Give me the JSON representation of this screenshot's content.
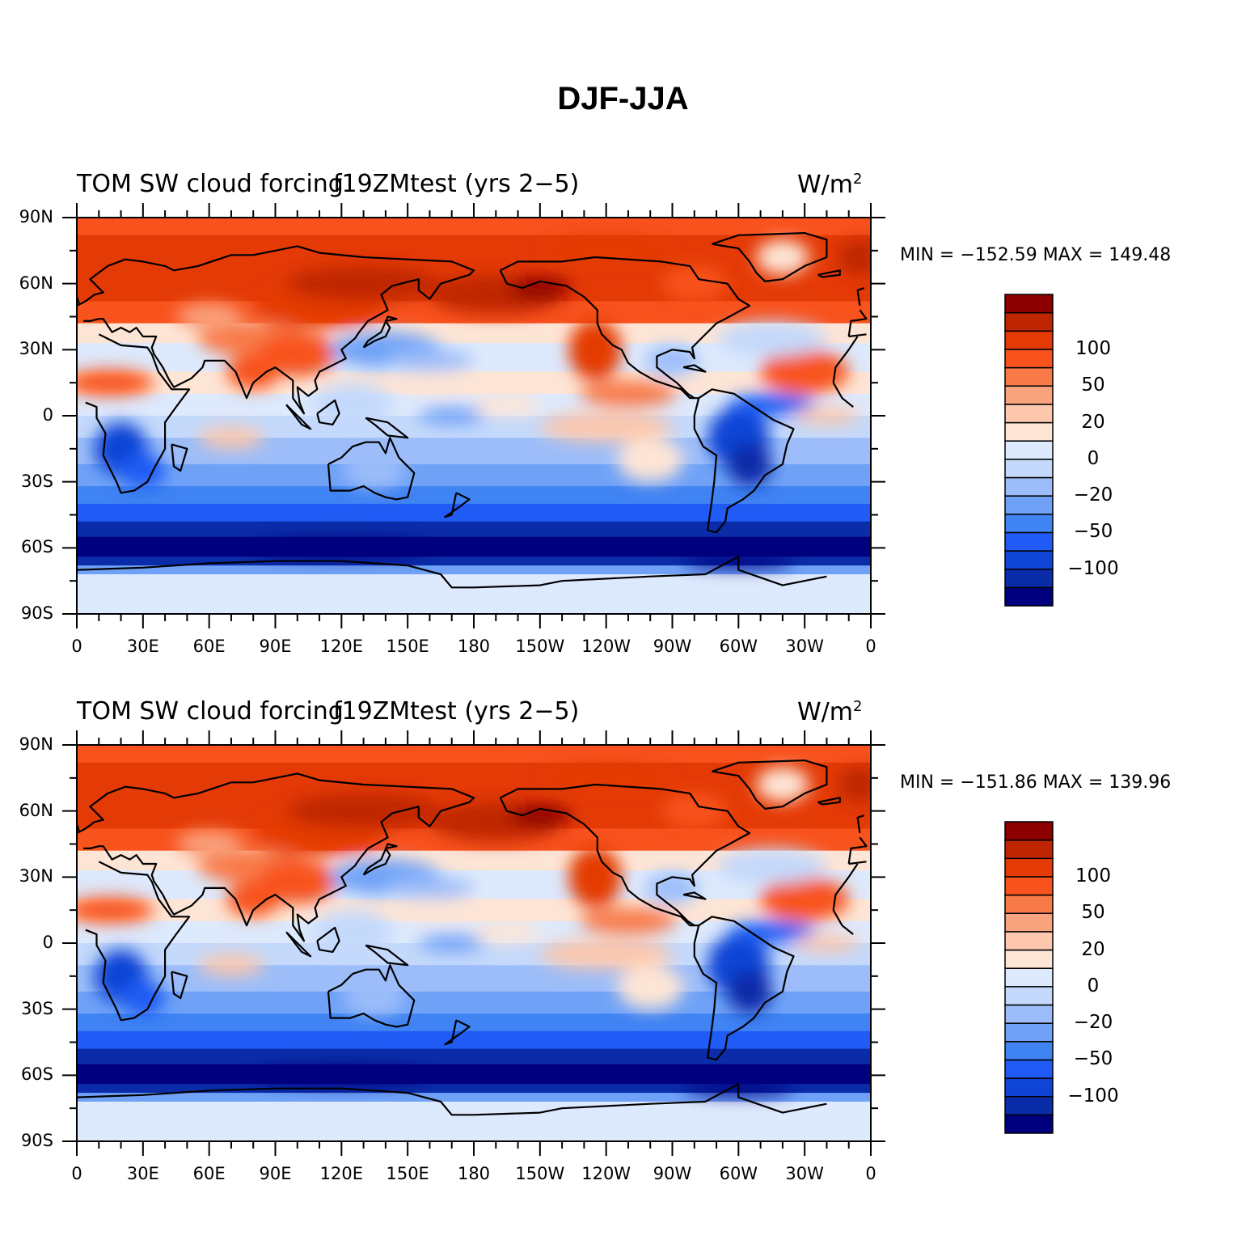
{
  "title": "DJF-JJA",
  "colorbar": {
    "colors": [
      "#00007f",
      "#0a2ca8",
      "#0f45d6",
      "#1f5bf4",
      "#4083f3",
      "#6fa2f7",
      "#9cbdf9",
      "#c4d9fb",
      "#dde9fc",
      "#fde5d6",
      "#fcc7ad",
      "#f9a27e",
      "#f87a48",
      "#f8521d",
      "#e43a06",
      "#bf2503",
      "#8d0000"
    ],
    "labels": [
      {
        "text": "100",
        "boundary": 14
      },
      {
        "text": "50",
        "boundary": 12
      },
      {
        "text": "20",
        "boundary": 10
      },
      {
        "text": "0",
        "boundary": 8
      },
      {
        "text": "−20",
        "boundary": 6
      },
      {
        "text": "−50",
        "boundary": 4
      },
      {
        "text": "−100",
        "boundary": 2
      }
    ]
  },
  "lat_ticks": [
    "90N",
    "60N",
    "30N",
    "0",
    "30S",
    "60S",
    "90S"
  ],
  "lon_ticks": [
    "0",
    "30E",
    "60E",
    "90E",
    "120E",
    "150E",
    "180",
    "150W",
    "120W",
    "90W",
    "60W",
    "30W",
    "0"
  ],
  "panels": [
    {
      "left_string": "TOM SW cloud forcing",
      "center_string": "f19ZMtest (yrs 2−5)",
      "right_string": "W/m",
      "right_superscript": "2",
      "stats": "MIN = −152.59  MAX = 149.48"
    },
    {
      "left_string": "TOM SW cloud forcing",
      "center_string": "f19ZMtest (yrs 2−5)",
      "right_string": "W/m",
      "right_superscript": "2",
      "stats": "MIN = −151.86  MAX = 139.96"
    }
  ]
}
